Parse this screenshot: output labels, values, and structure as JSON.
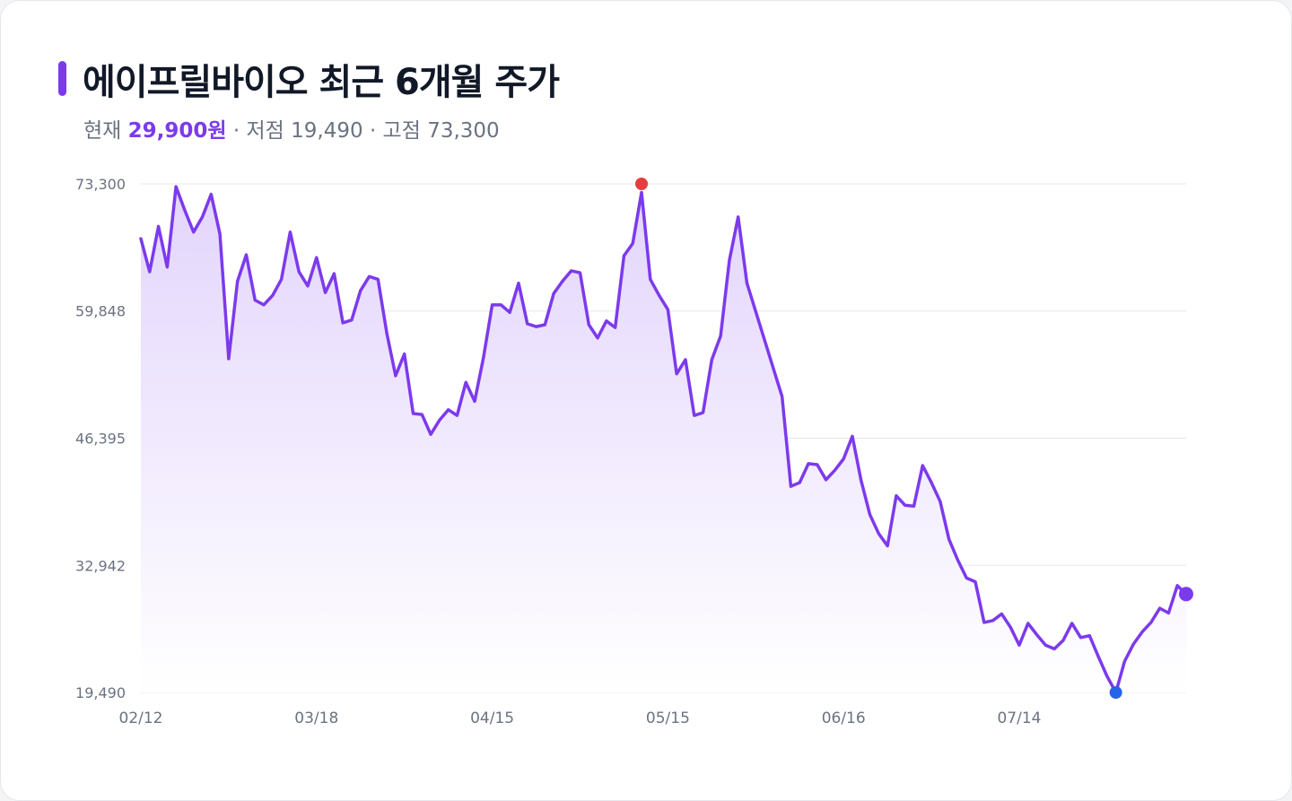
{
  "header": {
    "title": "에이프릴바이오 최근 6개월 주가",
    "current_label": "현재",
    "current_value": "29,900원",
    "low_label": "· 저점",
    "low_value": "19,490",
    "high_label": "· 고점",
    "high_value": "73,300"
  },
  "colors": {
    "line": "#7c3aed",
    "area_top": "#e3d5fc",
    "high_marker": "#e53e3e",
    "low_marker": "#2563eb",
    "current_marker": "#7c3aed",
    "grid": "#e5e7eb"
  },
  "chart_data": {
    "type": "area",
    "title": "에이프릴바이오 최근 6개월 주가",
    "xlabel": "",
    "ylabel": "",
    "ylim": [
      19490,
      73300
    ],
    "y_ticks": [
      "73,300",
      "59,848",
      "46,395",
      "32,942",
      "19,490"
    ],
    "y_tick_values": [
      73300,
      59848,
      46395,
      32942,
      19490
    ],
    "x_ticks": [
      "02/12",
      "03/18",
      "04/15",
      "05/15",
      "06/16",
      "07/14"
    ],
    "x_tick_indices": [
      0,
      20,
      40,
      60,
      80,
      100
    ],
    "grid": true,
    "series": [
      {
        "values": [
          67500,
          64000,
          68800,
          64500,
          73000,
          70500,
          68200,
          69800,
          72200,
          68000,
          54800,
          63000,
          65800,
          61000,
          60500,
          61500,
          63200,
          68200,
          64000,
          62500,
          65500,
          61800,
          63800,
          58600,
          58900,
          62000,
          63500,
          63200,
          57500,
          53000,
          55300,
          49000,
          48900,
          46800,
          48300,
          49400,
          48800,
          52300,
          50300,
          54900,
          60500,
          60500,
          59700,
          62800,
          58500,
          58200,
          58400,
          61700,
          63000,
          64100,
          63900,
          58400,
          57000,
          58800,
          58100,
          65700,
          67000,
          72400,
          63200,
          61500,
          60000,
          53200,
          54700,
          48800,
          49100,
          54700,
          57200,
          65200,
          69800,
          62800,
          59800,
          56800,
          53800,
          50800,
          41300,
          41700,
          43700,
          43600,
          42000,
          43000,
          44200,
          46600,
          41900,
          38300,
          36300,
          35000,
          40300,
          39300,
          39200,
          43500,
          41700,
          39700,
          35700,
          33500,
          31600,
          31200,
          26900,
          27100,
          27800,
          26400,
          24500,
          26800,
          25600,
          24500,
          24100,
          25000,
          26800,
          25300,
          25500,
          23300,
          21200,
          19490,
          22800,
          24600,
          25900,
          26900,
          28400,
          27900,
          30800,
          29900
        ]
      }
    ],
    "high_point": {
      "index": 57,
      "value": 73300
    },
    "low_point": {
      "index": 111,
      "value": 19490
    },
    "current_point": {
      "index": 119,
      "value": 29900
    }
  }
}
